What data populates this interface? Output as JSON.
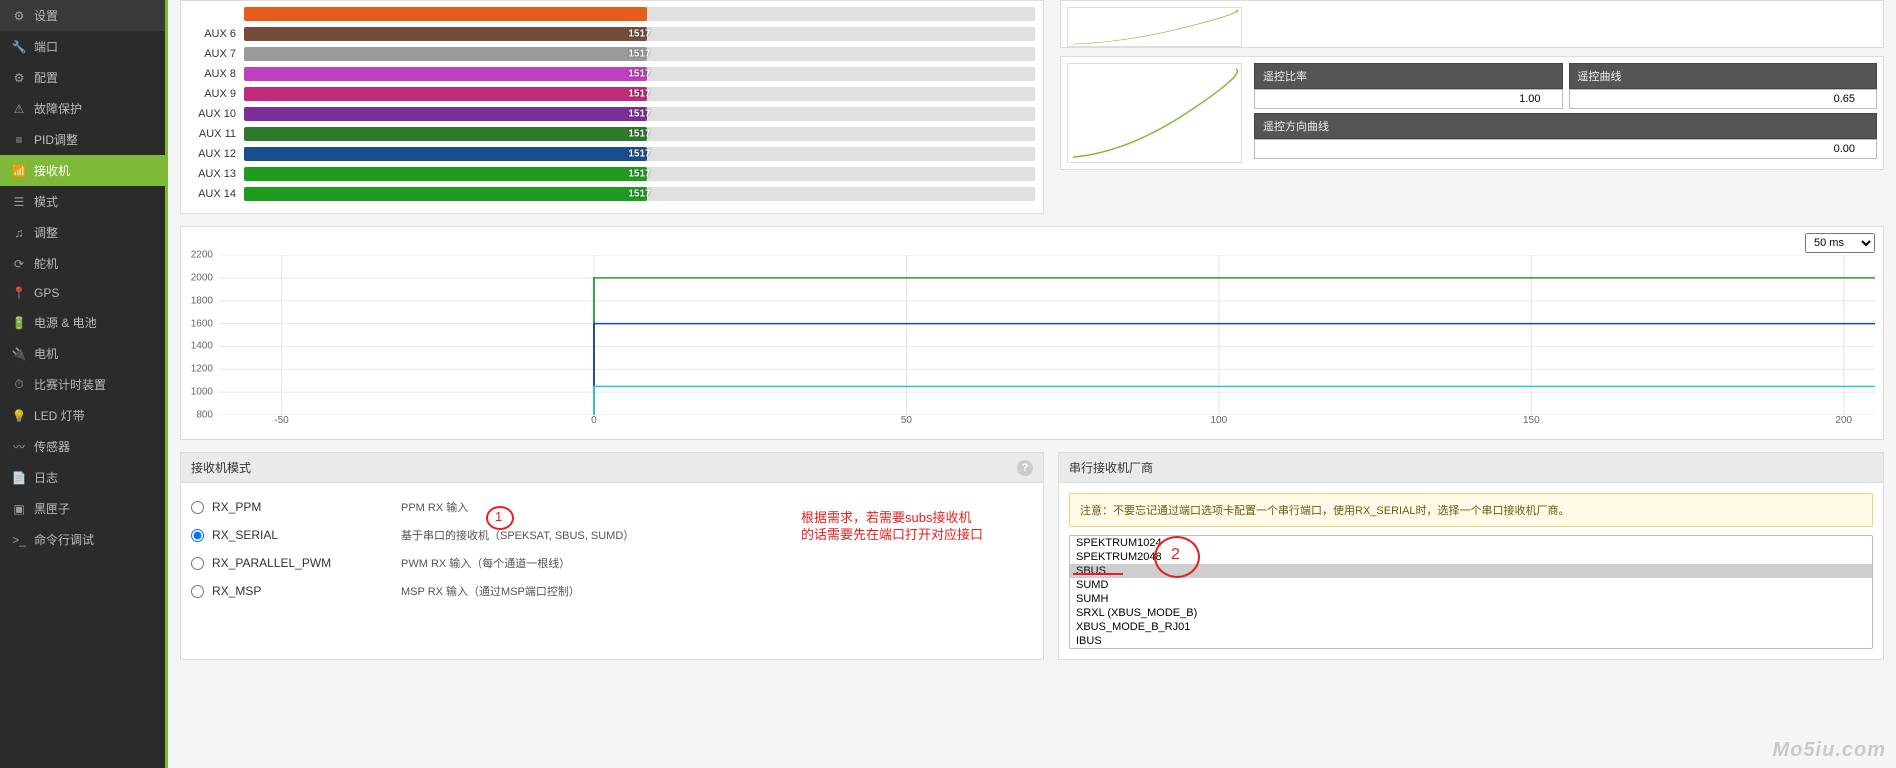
{
  "sidebar": {
    "items": [
      {
        "label": "设置",
        "icon": "gear"
      },
      {
        "label": "端口",
        "icon": "wrench"
      },
      {
        "label": "配置",
        "icon": "gear"
      },
      {
        "label": "故障保护",
        "icon": "warning"
      },
      {
        "label": "PID调整",
        "icon": "sliders"
      },
      {
        "label": "接收机",
        "icon": "signal"
      },
      {
        "label": "模式",
        "icon": "list"
      },
      {
        "label": "调整",
        "icon": "tune"
      },
      {
        "label": "舵机",
        "icon": "rotate"
      },
      {
        "label": "GPS",
        "icon": "location"
      },
      {
        "label": "电源 & 电池",
        "icon": "battery"
      },
      {
        "label": "电机",
        "icon": "plug"
      },
      {
        "label": "比赛计时装置",
        "icon": "timer"
      },
      {
        "label": "LED 灯带",
        "icon": "led"
      },
      {
        "label": "传感器",
        "icon": "pulse"
      },
      {
        "label": "日志",
        "icon": "log"
      },
      {
        "label": "黑匣子",
        "icon": "box"
      },
      {
        "label": "命令行调试",
        "icon": "terminal"
      }
    ],
    "active_index": 5
  },
  "channels": {
    "rows": [
      {
        "label": "AUX 6",
        "value": 1517,
        "color": "#744d3a",
        "width_pct": 51
      },
      {
        "label": "AUX 7",
        "value": 1517,
        "color": "#9b9b9b",
        "width_pct": 51
      },
      {
        "label": "AUX 8",
        "value": 1517,
        "color": "#bf3fbf",
        "width_pct": 51
      },
      {
        "label": "AUX 9",
        "value": 1517,
        "color": "#bf2a7a",
        "width_pct": 51
      },
      {
        "label": "AUX 10",
        "value": 1517,
        "color": "#7a2e9b",
        "width_pct": 51
      },
      {
        "label": "AUX 11",
        "value": 1517,
        "color": "#2d7a2d",
        "width_pct": 51
      },
      {
        "label": "AUX 12",
        "value": 1517,
        "color": "#1a4d8c",
        "width_pct": 51
      },
      {
        "label": "AUX 13",
        "value": 1517,
        "color": "#1f9b1f",
        "width_pct": 51
      },
      {
        "label": "AUX 14",
        "value": 1517,
        "color": "#1f9b1f",
        "width_pct": 51
      }
    ],
    "top_bar_color": "#e65c1a",
    "top_bar_width_pct": 51
  },
  "curve_inputs": {
    "ratio_label": "遥控比率",
    "ratio_value": "1.00",
    "curve_label": "遥控曲线",
    "curve_value": "0.65",
    "dir_label": "遥控方向曲线",
    "dir_value": "0.00",
    "curve_color": "#7fb93a"
  },
  "graph": {
    "refresh_value": "50 ms",
    "y_ticks": [
      800,
      1000,
      1200,
      1400,
      1600,
      1800,
      2000,
      2200
    ],
    "y_min": 800,
    "y_max": 2200,
    "x_ticks": [
      -50,
      0,
      50,
      100,
      150,
      200
    ],
    "x_min": -60,
    "x_max": 205,
    "lines": [
      {
        "color": "#2d9b3a",
        "y": 2000
      },
      {
        "color": "#1a4d8c",
        "y": 1600
      },
      {
        "color": "#2dc7d6",
        "y": 1050
      }
    ],
    "line_start_x": 0,
    "grid_color": "#e8e8e8"
  },
  "rx_mode": {
    "title": "接收机模式",
    "options": [
      {
        "value": "RX_PPM",
        "label": "RX_PPM",
        "desc": "PPM RX 输入"
      },
      {
        "value": "RX_SERIAL",
        "label": "RX_SERIAL",
        "desc": "基于串口的接收机（SPEKSAT, SBUS, SUMD）"
      },
      {
        "value": "RX_PARALLEL_PWM",
        "label": "RX_PARALLEL_PWM",
        "desc": "PWM RX 输入（每个通道一根线）"
      },
      {
        "value": "RX_MSP",
        "label": "RX_MSP",
        "desc": "MSP RX 输入（通过MSP端口控制）"
      }
    ],
    "selected": "RX_SERIAL"
  },
  "provider": {
    "title": "串行接收机厂商",
    "notice": "注意：不要忘记通过端口选项卡配置一个串行端口，使用RX_SERIAL时，选择一个串口接收机厂商。",
    "options": [
      "SPEKTRUM1024",
      "SPEKTRUM2048",
      "SBUS",
      "SUMD",
      "SUMH",
      "SRXL (XBUS_MODE_B)",
      "XBUS_MODE_B_RJ01",
      "IBUS"
    ],
    "selected": "SBUS"
  },
  "annotations": {
    "text1": "根据需求，若需要subs接收机",
    "text2": "的话需要先在端口打开对应接口",
    "num1": "1",
    "num2": "2"
  },
  "watermark": "Mo5iu.com"
}
